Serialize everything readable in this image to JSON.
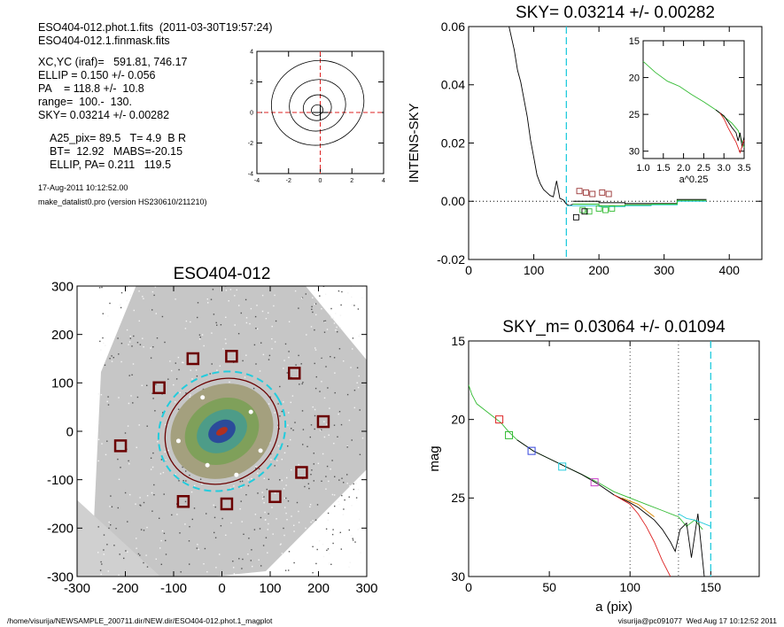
{
  "info": {
    "file1": "ESO404-012.phot.1.fits  (2011-03-30T19:57:24)",
    "file2": "ESO404-012.1.finmask.fits",
    "xcyc": "XC,YC (iraf)=   591.81, 746.17",
    "ellip": "ELLIP = 0.150 +/- 0.056",
    "pa": "PA    = 118.8 +/-  10.8",
    "range": "range=  100.-  130.",
    "sky": "SKY= 0.03214 +/- 0.00282",
    "a25": "A25_pix= 89.5   T= 4.9  B R",
    "bt": "BT=  12.92   MABS=-20.15",
    "ellip_pa": "ELLIP, PA= 0.211   119.5",
    "date": "17-Aug-2011 10:12:52.00",
    "program": "make_datalist0.pro (version HS230610/211210)"
  },
  "footer": {
    "path": "/home/visurija/NEWSAMPLE_200711.dir/NEW.dir/ESO404-012.phot.1_magplot",
    "user": "visurija@pc091077  Wed Aug 17 10:12:52 2011"
  },
  "colors": {
    "cyan": "#22ccdd",
    "red": "#dd2222",
    "green": "#33bb33",
    "brown": "#6b0000"
  },
  "chart_data": [
    {
      "type": "contour",
      "panel": "center-contour",
      "title": "",
      "xlabel": "",
      "ylabel": "",
      "xlim": [
        -4,
        4
      ],
      "ylim": [
        -4,
        4
      ],
      "xticks": [
        "-4",
        "-2",
        "0",
        "2",
        "4"
      ],
      "yticks": [
        "-4",
        "-2",
        "0",
        "2",
        "4"
      ],
      "contours": [
        0.35,
        0.85,
        1.7,
        2.8
      ],
      "cross": [
        0,
        0
      ]
    },
    {
      "type": "line",
      "panel": "sky-profile",
      "title": "SKY= 0.03214 +/- 0.00282",
      "xlabel": "",
      "ylabel": "INTENS-SKY",
      "xlim": [
        0,
        450
      ],
      "ylim": [
        -0.02,
        0.06
      ],
      "xticks": [
        "0",
        "100",
        "200",
        "300",
        "400"
      ],
      "yticks": [
        "-0.02",
        "0.00",
        "0.02",
        "0.04",
        "0.06"
      ],
      "vline": 150,
      "profile": {
        "x": [
          62,
          70,
          75,
          80,
          85,
          90,
          95,
          100,
          105,
          110,
          115,
          120,
          125,
          130,
          135,
          140,
          145,
          150,
          155,
          160
        ],
        "y": [
          0.06,
          0.052,
          0.045,
          0.041,
          0.035,
          0.029,
          0.021,
          0.015,
          0.009,
          0.006,
          0.004,
          0.003,
          0.002,
          0.0015,
          0.007,
          0.001,
          0.0005,
          -0.001,
          -0.0015,
          -0.001
        ]
      },
      "sky_steps": [
        {
          "name": "black",
          "x": [
            160,
            200,
            240,
            280,
            320,
            365
          ],
          "y": [
            0.0,
            -0.0005,
            -0.0008,
            -0.0008,
            0.0006,
            0.0006
          ]
        },
        {
          "name": "cyan",
          "x": [
            150,
            200,
            240,
            280,
            320,
            365
          ],
          "y": [
            -0.0015,
            -0.0018,
            -0.0015,
            -0.0012,
            0.0,
            0.0
          ]
        },
        {
          "name": "green",
          "x": [
            160,
            200,
            240,
            280,
            320,
            365
          ],
          "y": [
            -0.001,
            -0.0015,
            -0.0012,
            -0.001,
            0.0003,
            0.0003
          ]
        }
      ],
      "red_squares": {
        "x": [
          170,
          180,
          190,
          205,
          215
        ],
        "y": [
          0.0035,
          0.003,
          0.0025,
          0.003,
          0.0025
        ]
      },
      "green_squares": {
        "x": [
          175,
          185,
          200,
          210,
          220
        ],
        "y": [
          -0.003,
          -0.0035,
          -0.0025,
          -0.003,
          -0.0025
        ]
      },
      "black_squares": {
        "x": [
          165,
          178
        ],
        "y": [
          -0.0055,
          -0.0035
        ]
      }
    },
    {
      "type": "line",
      "panel": "sky-inset",
      "title": "",
      "xlabel": "a^0.25",
      "ylabel": "",
      "xlim": [
        1.0,
        3.5
      ],
      "ylim": [
        15,
        31
      ],
      "xticks": [
        "1.0",
        "1.5",
        "2.0",
        "2.5",
        "3.0",
        "3.5"
      ],
      "yticks": [
        "15",
        "20",
        "25",
        "30"
      ],
      "series": [
        {
          "name": "green",
          "x": [
            1.0,
            1.1,
            1.3,
            1.6,
            1.9,
            2.2,
            2.5,
            2.8,
            3.0,
            3.2,
            3.35,
            3.5
          ],
          "y": [
            17.8,
            18.3,
            19.3,
            20.5,
            21.2,
            22.3,
            23.3,
            24.4,
            25.3,
            26.2,
            27.2,
            29.5
          ]
        },
        {
          "name": "black",
          "x": [
            2.8,
            3.0,
            3.1,
            3.2,
            3.3,
            3.35,
            3.4,
            3.45,
            3.5
          ],
          "y": [
            24.4,
            25.2,
            26.0,
            26.8,
            27.5,
            28.6,
            27.5,
            29.5,
            28.0
          ]
        },
        {
          "name": "red",
          "x": [
            2.9,
            3.0,
            3.1,
            3.2,
            3.3,
            3.4,
            3.5
          ],
          "y": [
            24.8,
            25.6,
            26.8,
            27.8,
            28.8,
            30.2,
            28.5
          ]
        }
      ]
    },
    {
      "type": "image",
      "panel": "galaxy-image",
      "title": "ESO404-012",
      "xlabel": "",
      "ylabel": "",
      "xlim": [
        -300,
        300
      ],
      "ylim": [
        -300,
        300
      ],
      "xticks": [
        "-300",
        "-200",
        "-100",
        "0",
        "100",
        "200",
        "300"
      ],
      "yticks": [
        "-300",
        "-200",
        "-100",
        "0",
        "100",
        "200",
        "300"
      ],
      "ellipse": {
        "a": 135,
        "b": 120,
        "pa": 30
      },
      "mask_squares": [
        [
          -210,
          -30
        ],
        [
          -130,
          90
        ],
        [
          -60,
          150
        ],
        [
          20,
          155
        ],
        [
          150,
          120
        ],
        [
          210,
          20
        ],
        [
          165,
          -85
        ],
        [
          110,
          -135
        ],
        [
          10,
          -150
        ],
        [
          -80,
          -145
        ]
      ]
    },
    {
      "type": "line",
      "panel": "mag-profile",
      "title": "SKY_m=  0.03064 +/- 0.01094",
      "xlabel": "a (pix)",
      "ylabel": "mag",
      "xlim": [
        0,
        180
      ],
      "ylim": [
        15,
        30
      ],
      "xticks": [
        "0",
        "50",
        "100",
        "150"
      ],
      "yticks": [
        "15",
        "20",
        "25",
        "30"
      ],
      "dotted_vlines": [
        100,
        130
      ],
      "dashed_vline": 150,
      "series": [
        {
          "name": "green",
          "x": [
            0,
            2,
            5,
            10,
            15,
            20,
            25,
            30,
            40,
            50,
            60,
            70,
            80,
            90,
            100,
            110,
            120,
            130,
            135,
            140,
            145
          ],
          "y": [
            17.8,
            18.4,
            19.0,
            19.4,
            19.8,
            20.2,
            20.8,
            21.3,
            22.0,
            22.5,
            23.0,
            23.5,
            24.0,
            24.6,
            25.0,
            25.4,
            25.8,
            26.2,
            26.8,
            26.4,
            27.0
          ]
        },
        {
          "name": "black",
          "x": [
            30,
            40,
            50,
            60,
            70,
            80,
            90,
            100,
            105,
            110,
            115,
            120,
            125,
            128,
            131,
            135,
            138,
            142,
            146
          ],
          "y": [
            21.3,
            22.0,
            22.5,
            23.0,
            23.5,
            24.1,
            24.8,
            25.3,
            25.6,
            26.0,
            26.4,
            27.0,
            27.8,
            28.4,
            27.0,
            26.6,
            28.8,
            26.0,
            30.0
          ]
        },
        {
          "name": "red",
          "x": [
            90,
            100,
            105,
            110,
            115,
            120,
            125
          ],
          "y": [
            24.8,
            25.4,
            26.0,
            26.8,
            27.8,
            29.0,
            30.0
          ]
        },
        {
          "name": "orange",
          "x": [
            95,
            100,
            105,
            110,
            115
          ],
          "y": [
            25.0,
            25.2,
            25.4,
            25.8,
            26.2
          ]
        },
        {
          "name": "cyan",
          "x": [
            130,
            135,
            140,
            145,
            150
          ],
          "y": [
            26.0,
            26.3,
            26.4,
            26.6,
            26.8
          ]
        }
      ],
      "squares": [
        {
          "color": "#dd2222",
          "x": 19,
          "y": 20
        },
        {
          "color": "#33bb33",
          "x": 25,
          "y": 21
        },
        {
          "color": "#3344dd",
          "x": 39,
          "y": 22
        },
        {
          "color": "#22ccdd",
          "x": 58,
          "y": 23
        },
        {
          "color": "#cc44cc",
          "x": 78,
          "y": 24
        }
      ]
    }
  ]
}
